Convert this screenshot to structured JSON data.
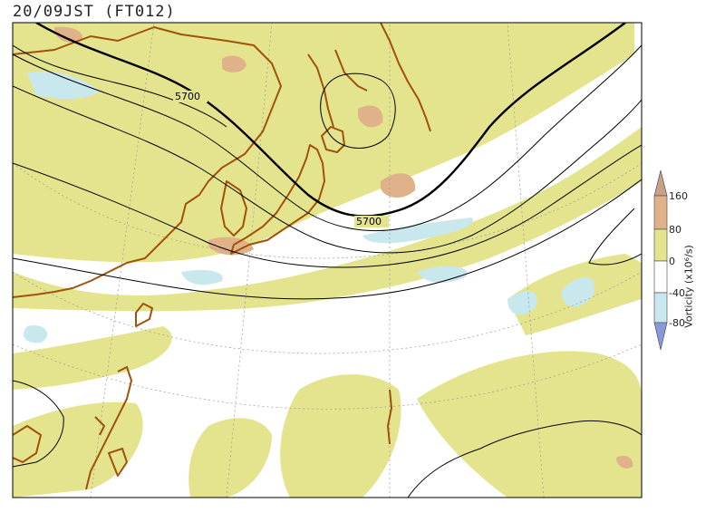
{
  "header": {
    "title": "20/09JST (FT012)"
  },
  "contours": {
    "label": "5700"
  },
  "colorbar": {
    "label": "Vorticity (x10⁶/s)",
    "ticks": [
      "160",
      "80",
      "0",
      "-40",
      "-80"
    ],
    "colors": {
      "high_cap": "#c8a088",
      "high": "#e0b28a",
      "positive": "#e4e48e",
      "zero": "#ffffff",
      "negative": "#c8e8ee",
      "low_cap": "#8898d8"
    }
  },
  "map_colors": {
    "coast": "#a0520a",
    "contour": "#000000",
    "grid": "#999999"
  }
}
